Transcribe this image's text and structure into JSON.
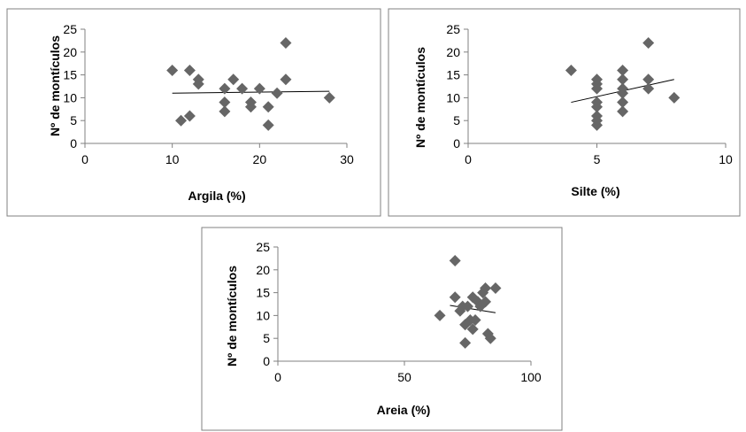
{
  "colors": {
    "marker": "#666666",
    "axis": "#808080",
    "frame": "#808080",
    "trend": "#000000"
  },
  "chart_data": [
    {
      "type": "scatter",
      "title": "",
      "xlabel": "Argila (%)",
      "ylabel": "Nº de montículos",
      "xlim": [
        0,
        30
      ],
      "ylim": [
        0,
        25
      ],
      "xticks": [
        "0",
        "10",
        "20",
        "30"
      ],
      "yticks": [
        "0",
        "5",
        "10",
        "15",
        "20",
        "25"
      ],
      "grid": false,
      "marker": "diamond",
      "points": [
        {
          "x": 10,
          "y": 16
        },
        {
          "x": 11,
          "y": 5
        },
        {
          "x": 12,
          "y": 6
        },
        {
          "x": 12,
          "y": 16
        },
        {
          "x": 13,
          "y": 13
        },
        {
          "x": 13,
          "y": 14
        },
        {
          "x": 16,
          "y": 7
        },
        {
          "x": 16,
          "y": 9
        },
        {
          "x": 16,
          "y": 12
        },
        {
          "x": 17,
          "y": 14
        },
        {
          "x": 18,
          "y": 12
        },
        {
          "x": 19,
          "y": 8
        },
        {
          "x": 19,
          "y": 9
        },
        {
          "x": 20,
          "y": 12
        },
        {
          "x": 21,
          "y": 8
        },
        {
          "x": 21,
          "y": 4
        },
        {
          "x": 22,
          "y": 11
        },
        {
          "x": 23,
          "y": 14
        },
        {
          "x": 23,
          "y": 22
        },
        {
          "x": 28,
          "y": 10
        }
      ],
      "trendline": {
        "x": [
          10,
          28
        ],
        "y": [
          11.0,
          11.4
        ]
      }
    },
    {
      "type": "scatter",
      "title": "",
      "xlabel": "Silte (%)",
      "ylabel": "Nº de montículos",
      "xlim": [
        0,
        10
      ],
      "ylim": [
        0,
        25
      ],
      "xticks": [
        "0",
        "5",
        "10"
      ],
      "yticks": [
        "0",
        "5",
        "10",
        "15",
        "20",
        "25"
      ],
      "grid": false,
      "marker": "diamond",
      "points": [
        {
          "x": 4,
          "y": 16
        },
        {
          "x": 5,
          "y": 4
        },
        {
          "x": 5,
          "y": 5
        },
        {
          "x": 5,
          "y": 6
        },
        {
          "x": 5,
          "y": 8
        },
        {
          "x": 5,
          "y": 9
        },
        {
          "x": 5,
          "y": 12
        },
        {
          "x": 5,
          "y": 13
        },
        {
          "x": 5,
          "y": 14
        },
        {
          "x": 6,
          "y": 7
        },
        {
          "x": 6,
          "y": 9
        },
        {
          "x": 6,
          "y": 11
        },
        {
          "x": 6,
          "y": 12
        },
        {
          "x": 6,
          "y": 14
        },
        {
          "x": 6,
          "y": 16
        },
        {
          "x": 7,
          "y": 12
        },
        {
          "x": 7,
          "y": 14
        },
        {
          "x": 7,
          "y": 22
        },
        {
          "x": 8,
          "y": 10
        }
      ],
      "trendline": {
        "x": [
          4,
          8
        ],
        "y": [
          9.0,
          14.0
        ]
      }
    },
    {
      "type": "scatter",
      "title": "",
      "xlabel": "Areia (%)",
      "ylabel": "Nº de montículos",
      "xlim": [
        0,
        100
      ],
      "ylim": [
        0,
        25
      ],
      "xticks": [
        "0",
        "50",
        "100"
      ],
      "yticks": [
        "0",
        "5",
        "10",
        "15",
        "20",
        "25"
      ],
      "grid": false,
      "marker": "diamond",
      "points": [
        {
          "x": 64,
          "y": 10
        },
        {
          "x": 70,
          "y": 22
        },
        {
          "x": 70,
          "y": 14
        },
        {
          "x": 72,
          "y": 11
        },
        {
          "x": 73,
          "y": 12
        },
        {
          "x": 74,
          "y": 4
        },
        {
          "x": 74,
          "y": 8
        },
        {
          "x": 75,
          "y": 12
        },
        {
          "x": 76,
          "y": 9
        },
        {
          "x": 77,
          "y": 7
        },
        {
          "x": 77,
          "y": 14
        },
        {
          "x": 78,
          "y": 9
        },
        {
          "x": 79,
          "y": 13
        },
        {
          "x": 80,
          "y": 12
        },
        {
          "x": 81,
          "y": 15
        },
        {
          "x": 82,
          "y": 13
        },
        {
          "x": 82,
          "y": 16
        },
        {
          "x": 83,
          "y": 6
        },
        {
          "x": 84,
          "y": 5
        },
        {
          "x": 86,
          "y": 16
        }
      ],
      "trendline": {
        "x": [
          68,
          86
        ],
        "y": [
          12.2,
          10.6
        ]
      }
    }
  ]
}
